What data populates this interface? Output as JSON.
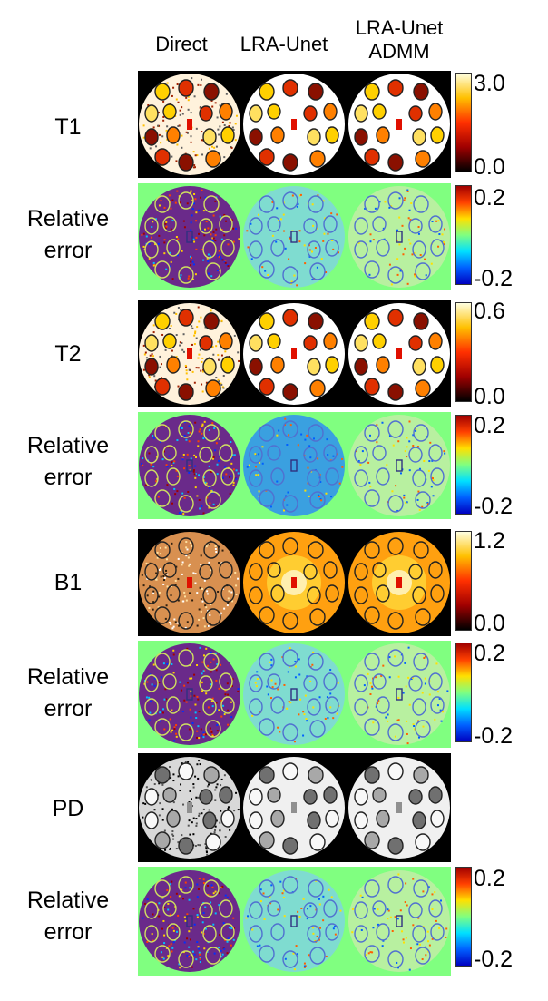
{
  "columns": [
    "Direct",
    "LRA-Unet",
    "LRA-Unet\nADMM"
  ],
  "rows": [
    {
      "label": "T1",
      "kind": "map",
      "colormap": "hot",
      "ticks": {
        "max": "3.0",
        "min": "0.0"
      }
    },
    {
      "label": "Relative\nerror",
      "kind": "error",
      "colormap": "jet",
      "ticks": {
        "max": "0.2",
        "min": "-0.2"
      }
    },
    {
      "label": "T2",
      "kind": "map",
      "colormap": "hot",
      "ticks": {
        "max": "0.6",
        "min": "0.0"
      }
    },
    {
      "label": "Relative\nerror",
      "kind": "error",
      "colormap": "jet",
      "ticks": {
        "max": "0.2",
        "min": "-0.2"
      }
    },
    {
      "label": "B1",
      "kind": "map",
      "colormap": "hot",
      "ticks": {
        "max": "1.2",
        "min": "0.0"
      }
    },
    {
      "label": "Relative\nerror",
      "kind": "error",
      "colormap": "jet",
      "ticks": {
        "max": "0.2",
        "min": "-0.2"
      }
    },
    {
      "label": "PD",
      "kind": "map",
      "colormap": "gray",
      "ticks": {}
    },
    {
      "label": "Relative\nerror",
      "kind": "error",
      "colormap": "jet",
      "ticks": {
        "max": "0.2",
        "min": "-0.2"
      }
    }
  ],
  "colors": {
    "hot": [
      "#000000",
      "#a00000",
      "#ff3000",
      "#ffc000",
      "#ffffe0",
      "#ffffff"
    ],
    "jet": [
      "#0000c0",
      "#0060ff",
      "#00e0ff",
      "#80ff80",
      "#ffe000",
      "#ff4000",
      "#a00000"
    ],
    "error_background": "#80ff80",
    "map_background": "#000000"
  }
}
